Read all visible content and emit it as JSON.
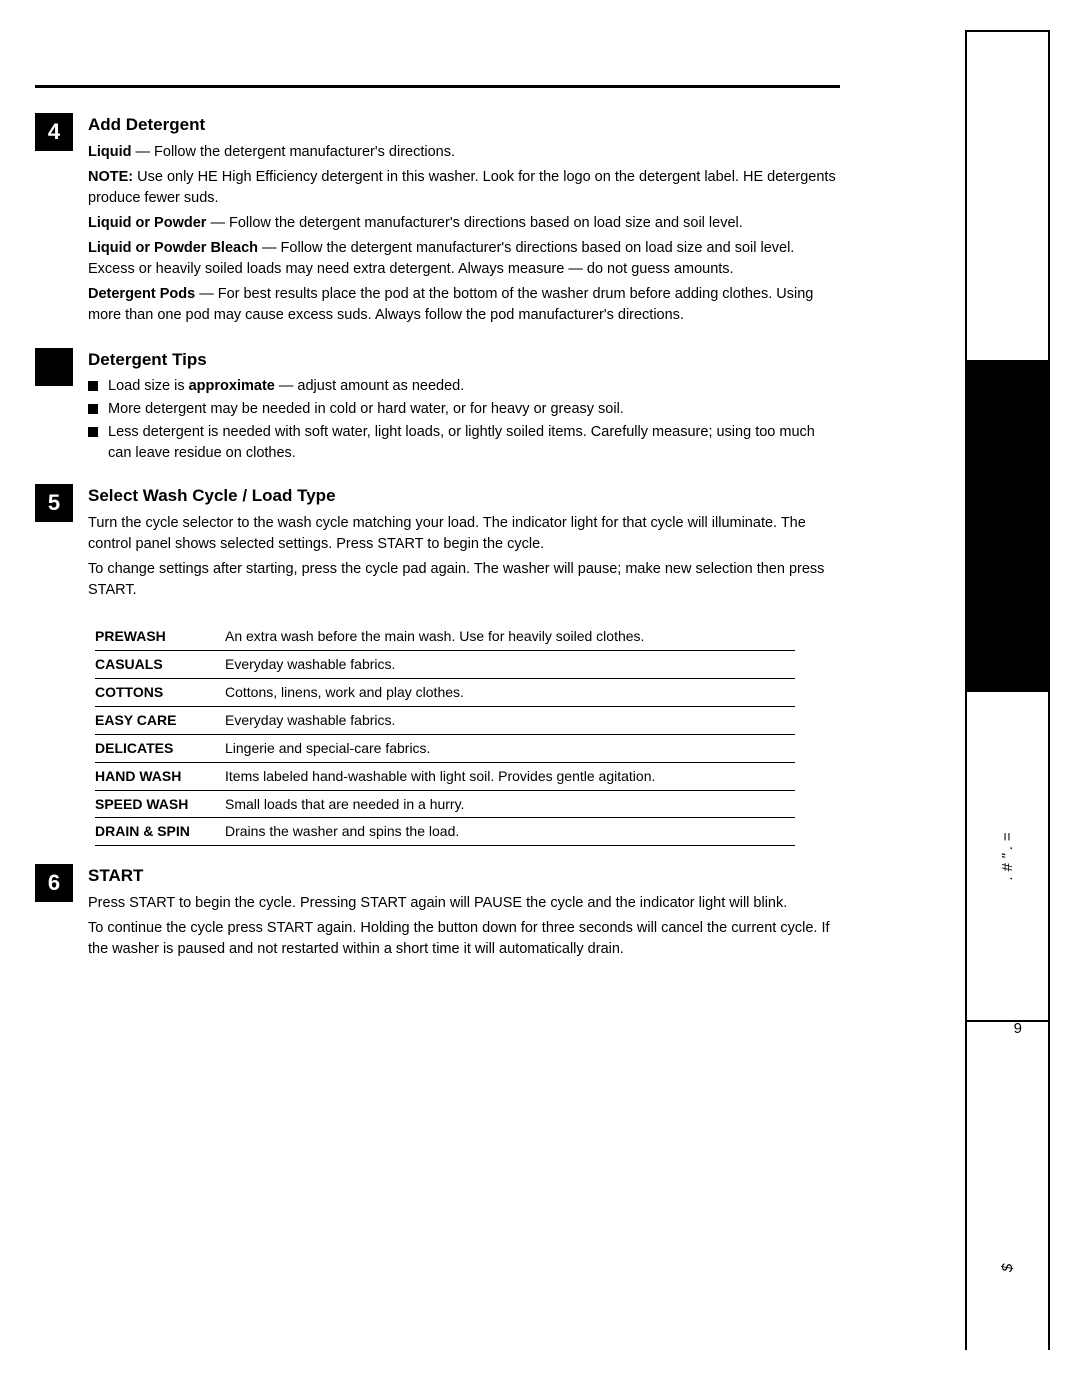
{
  "page": {
    "number": "9",
    "hr_color": "#000000"
  },
  "sections": [
    {
      "num": "4",
      "title": "Add Detergent",
      "blocks": [
        {
          "type": "p",
          "bold_prefix": "Liquid",
          "text": "— Follow the detergent manufacturer's directions."
        },
        {
          "type": "note",
          "label": "NOTE:",
          "text": "Use only HE High Efficiency detergent in this washer. Look for the logo on the detergent label. HE detergents produce fewer suds."
        },
        {
          "type": "p",
          "bold_prefix": "Liquid or Powder",
          "text": "— Follow the detergent manufacturer's directions based on load size and soil level."
        },
        {
          "type": "p",
          "bold_prefix": "Liquid or Powder Bleach",
          "text": "— Follow the detergent manufacturer's directions based on load size and soil level. Excess or heavily soiled loads may need extra detergent. Always measure — do not guess amounts."
        },
        {
          "type": "p",
          "bold_prefix": "Detergent Pods",
          "text": "— For best results place the pod at the bottom of the washer drum before adding clothes. Using more than one pod may cause excess suds. Always follow the pod manufacturer's directions."
        }
      ]
    },
    {
      "num": "",
      "title": "Detergent Tips",
      "blocks": [
        {
          "type": "bullet",
          "text": "Load size is ",
          "bold_word": "approximate",
          "text_after": " — adjust amount as needed."
        },
        {
          "type": "bullet",
          "text": "More detergent may be needed in cold or hard water, or for heavy or greasy soil."
        },
        {
          "type": "bullet",
          "text": "Less detergent is needed with soft water, light loads, or lightly soiled items. Carefully measure; using too much can leave residue on clothes."
        }
      ]
    },
    {
      "num": "5",
      "title": "Select Wash Cycle / Load Type",
      "blocks": [
        {
          "type": "p",
          "text": "Turn the cycle selector to the wash cycle matching your load. The indicator light for that cycle will illuminate. The control panel shows selected settings. Press START to begin the cycle."
        },
        {
          "type": "p",
          "text": "To change settings after starting, press the cycle pad again. The washer will pause; make new selection then press START."
        }
      ],
      "cycles": [
        {
          "name": "PREWASH",
          "desc": "An extra wash before the main wash. Use for heavily soiled clothes."
        },
        {
          "name": "CASUALS",
          "desc": "Everyday washable fabrics."
        },
        {
          "name": "COTTONS",
          "desc": "Cottons, linens, work and play clothes."
        },
        {
          "name": "EASY CARE",
          "desc": "Everyday washable fabrics."
        },
        {
          "name": "DELICATES",
          "desc": "Lingerie and special-care fabrics."
        },
        {
          "name": "HAND WASH",
          "desc": "Items labeled hand-washable with light soil. Provides gentle agitation."
        },
        {
          "name": "SPEED WASH",
          "desc": "Small loads that are needed in a hurry."
        },
        {
          "name": "DRAIN & SPIN",
          "desc": "Drains the washer and spins the load."
        }
      ]
    },
    {
      "num": "6",
      "title": "START",
      "blocks": [
        {
          "type": "p",
          "text": "Press START to begin the cycle. Pressing START again will PAUSE the cycle and the indicator light will blink."
        },
        {
          "type": "p",
          "text": "To continue the cycle press START again. Holding the button down for three seconds will cancel the current cycle. If the washer is paused and not restarted within a short time it will automatically drain."
        }
      ]
    }
  ],
  "sidebar": {
    "tabs": [
      {
        "text": "",
        "inverted": false
      },
      {
        "text": "",
        "inverted": true
      },
      {
        "text": ". #  \"  .  =",
        "inverted": false
      },
      {
        "text": "",
        "inverted": false,
        "small": true
      },
      {
        "text": "$",
        "inverted": false,
        "small": true
      }
    ]
  }
}
